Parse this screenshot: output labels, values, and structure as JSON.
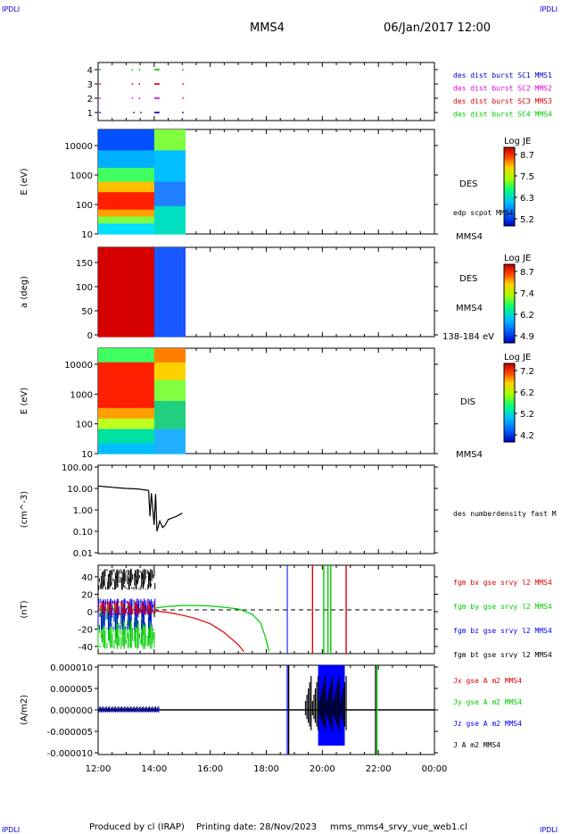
{
  "header": {
    "logo_left": "IPDLI",
    "logo_right": "IPDLI",
    "spacecraft": "MMS4",
    "datetime": "06/Jan/2017 12:00"
  },
  "footer": {
    "produced_by": "Produced by cl (IRAP)",
    "printing_date": "Printing date: 28/Nov/2023",
    "filename": "mms_mms4_srvy_vue_web1.cl",
    "logo_left": "IPDLI",
    "logo_right": "IPDLI"
  },
  "colors": {
    "black": "#000000",
    "red": "#e00000",
    "green": "#00cc00",
    "blue": "#0000ff",
    "magenta": "#e000e0",
    "legend_blue": "#0000cc"
  },
  "time_axis": {
    "tick_labels": [
      "12:00",
      "14:00",
      "16:00",
      "18:00",
      "20:00",
      "22:00",
      "00:00"
    ],
    "start_hour": 12,
    "end_hour": 24
  },
  "chart_data": [
    {
      "id": "burst",
      "type": "scatter",
      "y_ticks": [
        "4",
        "3",
        "2",
        "1"
      ],
      "legend": [
        {
          "label": "des dist burst SC1 MMS1",
          "color": "#0000cc"
        },
        {
          "label": "des dist burst SC2 MMS2",
          "color": "#e000e0"
        },
        {
          "label": "des dist burst SC3 MMS3",
          "color": "#e00000"
        },
        {
          "label": "des dist burst SC4 MMS4",
          "color": "#00cc00"
        }
      ],
      "burst_intervals_hours": [
        {
          "level": 1,
          "t": [
            12.05,
            13.25,
            13.5,
            14.0,
            14.1,
            15.0
          ]
        },
        {
          "level": 2,
          "t": [
            12.05,
            13.2,
            13.45,
            14.0,
            14.1,
            15.0
          ]
        },
        {
          "level": 3,
          "t": [
            12.05,
            13.2,
            13.45,
            14.0,
            14.1,
            15.0
          ]
        },
        {
          "level": 4,
          "t": [
            12.05,
            13.2,
            13.45,
            14.0,
            14.1,
            15.0
          ]
        }
      ]
    },
    {
      "id": "des_energy",
      "type": "heatmap",
      "ylabel": "E (eV)",
      "y_ticks": [
        "10000",
        "1000",
        "100",
        "10"
      ],
      "log_scale": true,
      "label_right": "DES",
      "label_right2": "edp scpot MMS4",
      "label_bottom": "MMS4",
      "colorbar": {
        "title": "Log JE",
        "ticks": [
          "8.7",
          "7.5",
          "6.3",
          "5.2"
        ]
      },
      "data_end_hour": 15.1
    },
    {
      "id": "des_pitch",
      "type": "heatmap",
      "ylabel": "a (deg)",
      "y_ticks": [
        "150",
        "100",
        "50",
        "0"
      ],
      "label_right": "DES",
      "label_right2": "MMS4",
      "label_bottom": "138-184 eV",
      "colorbar": {
        "title": "Log JE",
        "ticks": [
          "8.7",
          "7.4",
          "6.2",
          "4.9"
        ]
      },
      "data_end_hour": 15.1
    },
    {
      "id": "dis_energy",
      "type": "heatmap",
      "ylabel": "E (eV)",
      "y_ticks": [
        "10000",
        "1000",
        "100",
        "10"
      ],
      "log_scale": true,
      "label_right": "DIS",
      "label_bottom": "MMS4",
      "colorbar": {
        "title": "Log JE",
        "ticks": [
          "7.2",
          "6.2",
          "5.2",
          "4.2"
        ]
      },
      "data_end_hour": 15.1
    },
    {
      "id": "density",
      "type": "line",
      "ylabel": "(cm^-3)",
      "y_ticks": [
        "100.00",
        "10.00",
        "1.00",
        "0.10",
        "0.01"
      ],
      "ylim": [
        0.01,
        100
      ],
      "log_scale": true,
      "legend": [
        {
          "label": "des numberdensity fast M",
          "color": "#000000"
        }
      ],
      "series": [
        {
          "name": "des numberdensity fast M",
          "x": [
            12.0,
            12.3,
            12.6,
            13.0,
            13.4,
            13.8,
            13.85,
            13.9,
            14.0,
            14.05,
            14.1,
            14.2,
            14.3,
            14.4,
            14.5,
            14.6,
            14.8,
            15.0
          ],
          "y": [
            13,
            12,
            11,
            10,
            9.5,
            8,
            0.5,
            6,
            0.2,
            5.5,
            0.1,
            0.3,
            0.15,
            0.2,
            0.35,
            0.4,
            0.5,
            0.7
          ]
        }
      ]
    },
    {
      "id": "fgm",
      "type": "line",
      "ylabel": "(nT)",
      "y_ticks": [
        "40",
        "20",
        "0",
        "-20",
        "-40"
      ],
      "ylim": [
        -48,
        48
      ],
      "legend": [
        {
          "label": "fgm bx gse srvy l2 MMS4",
          "color": "#e00000"
        },
        {
          "label": "fgm by gse srvy l2 MMS4",
          "color": "#00cc00"
        },
        {
          "label": "fgm bz gse srvy l2 MMS4",
          "color": "#0000ff"
        },
        {
          "label": "fgm bt gse srvy l2 MMS4",
          "color": "#000000"
        }
      ],
      "series": [
        {
          "name": "fgm by gse srvy l2 MMS4",
          "x": [
            14.0,
            14.5,
            15.0,
            15.5,
            16.0,
            16.5,
            17.0,
            17.5,
            17.8,
            18.0,
            18.1
          ],
          "y": [
            2,
            4,
            5,
            5,
            4.5,
            3,
            1,
            -5,
            -15,
            -35,
            -48
          ]
        },
        {
          "name": "fgm bx gse srvy l2 MMS4",
          "x": [
            14.0,
            14.5,
            15.0,
            15.5,
            16.0,
            16.5,
            17.0,
            17.2
          ],
          "y": [
            -1,
            -3,
            -6,
            -10,
            -16,
            -26,
            -40,
            -48
          ]
        },
        {
          "name": "fgm bz gse srvy l2 MMS4",
          "x": [
            18.75
          ],
          "y": [
            0
          ]
        }
      ]
    },
    {
      "id": "current",
      "type": "line",
      "ylabel": "(A/m2)",
      "y_ticks": [
        "0.000010",
        "0.000005",
        "0.000000",
        "-0.000005",
        "-0.000010"
      ],
      "ylim": [
        -1e-05,
        1e-05
      ],
      "legend": [
        {
          "label": "Jx gse A m2 MMS4",
          "color": "#e00000"
        },
        {
          "label": "Jy gse A m2 MMS4",
          "color": "#00cc00"
        },
        {
          "label": "Jz gse A m2 MMS4",
          "color": "#0000ff"
        },
        {
          "label": "J A m2 MMS4",
          "color": "#000000"
        }
      ]
    }
  ]
}
